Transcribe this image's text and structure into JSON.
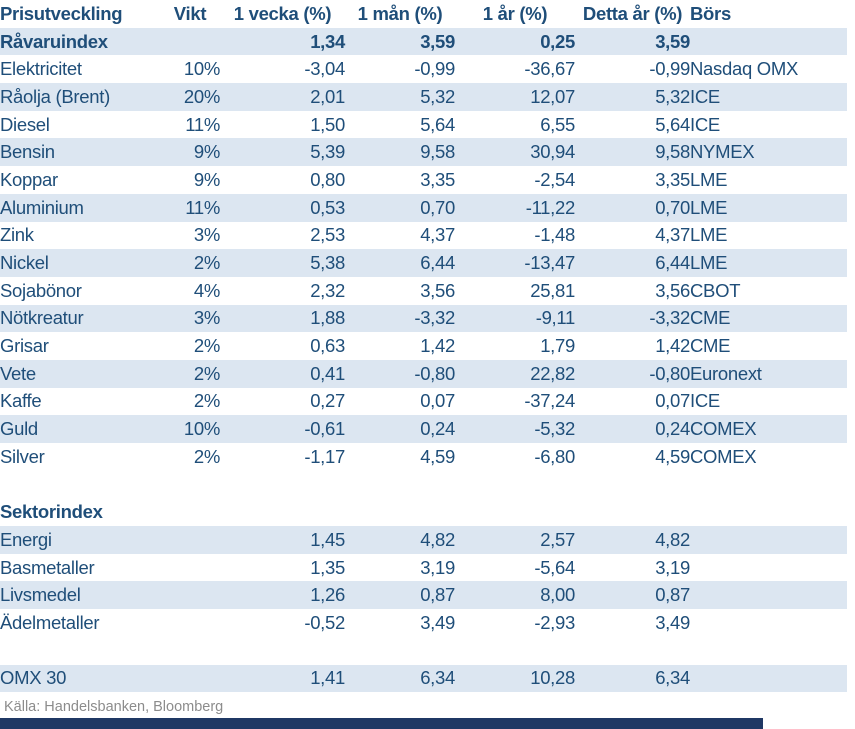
{
  "colors": {
    "text_blue": "#1F4E79",
    "row_shaded_bg": "#DCE6F1",
    "negative_red": "#FF0000",
    "source_gray": "#8C8C8C",
    "accent_bar_navy": "#1F3864"
  },
  "table": {
    "columns": [
      "Prisutveckling",
      "Vikt",
      "1 vecka (%)",
      "1 mån (%)",
      "1 år (%)",
      "Detta år (%)",
      "Börs"
    ],
    "rows": [
      {
        "type": "index",
        "label": "Råvaruindex",
        "vikt": "",
        "w1": "1,34",
        "m1": "3,59",
        "y1": "0,25",
        "ytd": "3,59",
        "bors": "",
        "shaded": true,
        "bold": true
      },
      {
        "type": "data",
        "label": "Elektricitet",
        "vikt": "10%",
        "w1": "-3,04",
        "m1": "-0,99",
        "y1": "-36,67",
        "ytd": "-0,99",
        "bors": "Nasdaq OMX",
        "shaded": false
      },
      {
        "type": "data",
        "label": "Råolja (Brent)",
        "vikt": "20%",
        "w1": "2,01",
        "m1": "5,32",
        "y1": "12,07",
        "ytd": "5,32",
        "bors": "ICE",
        "shaded": true
      },
      {
        "type": "data",
        "label": "Diesel",
        "vikt": "11%",
        "w1": "1,50",
        "m1": "5,64",
        "y1": "6,55",
        "ytd": "5,64",
        "bors": "ICE",
        "shaded": false
      },
      {
        "type": "data",
        "label": "Bensin",
        "vikt": "9%",
        "w1": "5,39",
        "m1": "9,58",
        "y1": "30,94",
        "ytd": "9,58",
        "bors": "NYMEX",
        "shaded": true
      },
      {
        "type": "data",
        "label": "Koppar",
        "vikt": "9%",
        "w1": "0,80",
        "m1": "3,35",
        "y1": "-2,54",
        "ytd": "3,35",
        "bors": "LME",
        "shaded": false
      },
      {
        "type": "data",
        "label": "Aluminium",
        "vikt": "11%",
        "w1": "0,53",
        "m1": "0,70",
        "y1": "-11,22",
        "ytd": "0,70",
        "bors": "LME",
        "shaded": true
      },
      {
        "type": "data",
        "label": "Zink",
        "vikt": "3%",
        "w1": "2,53",
        "m1": "4,37",
        "y1": "-1,48",
        "ytd": "4,37",
        "bors": "LME",
        "shaded": false
      },
      {
        "type": "data",
        "label": "Nickel",
        "vikt": "2%",
        "w1": "5,38",
        "m1": "6,44",
        "y1": "-13,47",
        "ytd": "6,44",
        "bors": "LME",
        "shaded": true
      },
      {
        "type": "data",
        "label": "Sojabönor",
        "vikt": "4%",
        "w1": "2,32",
        "m1": "3,56",
        "y1": "25,81",
        "ytd": "3,56",
        "bors": "CBOT",
        "shaded": false
      },
      {
        "type": "data",
        "label": "Nötkreatur",
        "vikt": "3%",
        "w1": "1,88",
        "m1": "-3,32",
        "y1": "-9,11",
        "ytd": "-3,32",
        "bors": "CME",
        "shaded": true
      },
      {
        "type": "data",
        "label": "Grisar",
        "vikt": "2%",
        "w1": "0,63",
        "m1": "1,42",
        "y1": "1,79",
        "ytd": "1,42",
        "bors": "CME",
        "shaded": false
      },
      {
        "type": "data",
        "label": "Vete",
        "vikt": "2%",
        "w1": "0,41",
        "m1": "-0,80",
        "y1": "22,82",
        "ytd": "-0,80",
        "bors": "Euronext",
        "shaded": true
      },
      {
        "type": "data",
        "label": "Kaffe",
        "vikt": "2%",
        "w1": "0,27",
        "m1": "0,07",
        "y1": "-37,24",
        "ytd": "0,07",
        "bors": "ICE",
        "shaded": false
      },
      {
        "type": "data",
        "label": "Guld",
        "vikt": "10%",
        "w1": "-0,61",
        "m1": "0,24",
        "y1": "-5,32",
        "ytd": "0,24",
        "bors": "COMEX",
        "shaded": true
      },
      {
        "type": "data",
        "label": "Silver",
        "vikt": "2%",
        "w1": "-1,17",
        "m1": "4,59",
        "y1": "-6,80",
        "ytd": "4,59",
        "bors": "COMEX",
        "shaded": false
      },
      {
        "type": "blank"
      },
      {
        "type": "section",
        "label": "Sektorindex",
        "vikt": "",
        "w1": "",
        "m1": "",
        "y1": "",
        "ytd": "",
        "bors": "",
        "shaded": false,
        "bold": true
      },
      {
        "type": "data",
        "label": "Energi",
        "vikt": "",
        "w1": "1,45",
        "m1": "4,82",
        "y1": "2,57",
        "ytd": "4,82",
        "bors": "",
        "shaded": true
      },
      {
        "type": "data",
        "label": "Basmetaller",
        "vikt": "",
        "w1": "1,35",
        "m1": "3,19",
        "y1": "-5,64",
        "ytd": "3,19",
        "bors": "",
        "shaded": false
      },
      {
        "type": "data",
        "label": "Livsmedel",
        "vikt": "",
        "w1": "1,26",
        "m1": "0,87",
        "y1": "8,00",
        "ytd": "0,87",
        "bors": "",
        "shaded": true
      },
      {
        "type": "data",
        "label": "Ädelmetaller",
        "vikt": "",
        "w1": "-0,52",
        "m1": "3,49",
        "y1": "-2,93",
        "ytd": "3,49",
        "bors": "",
        "shaded": false
      },
      {
        "type": "blank"
      },
      {
        "type": "data",
        "label": "OMX 30",
        "vikt": "",
        "w1": "1,41",
        "m1": "6,34",
        "y1": "10,28",
        "ytd": "6,34",
        "bors": "",
        "shaded": true
      }
    ]
  },
  "footer": {
    "source": "Källa: Handelsbanken, Bloomberg"
  }
}
